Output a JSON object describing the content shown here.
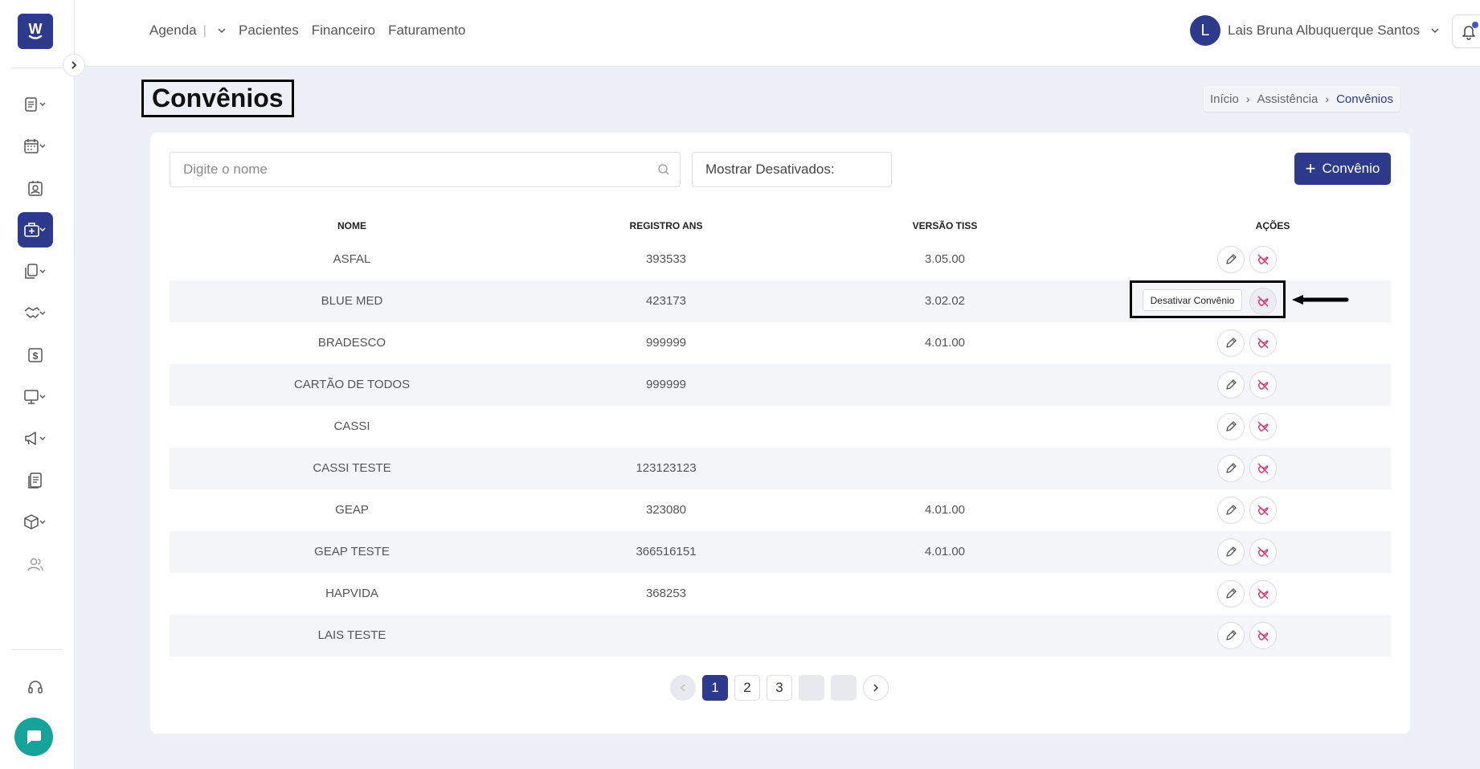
{
  "app": {
    "logo_letter": "W"
  },
  "topnav": {
    "items": [
      "Agenda",
      "Pacientes",
      "Financeiro",
      "Faturamento"
    ],
    "agenda_separator": "|"
  },
  "user": {
    "initial": "L",
    "name": "Lais Bruna Albuquerque Santos"
  },
  "page": {
    "title": "Convênios"
  },
  "breadcrumb": {
    "items": [
      "Início",
      "Assistência",
      "Convênios"
    ]
  },
  "search": {
    "placeholder": "Digite o nome",
    "value": ""
  },
  "filter": {
    "show_disabled_label": "Mostrar Desativados:",
    "show_disabled_on": false
  },
  "add_button": {
    "label": "Convênio"
  },
  "table": {
    "headers": [
      "NOME",
      "REGISTRO ANS",
      "VERSÃO TISS",
      "AÇÕES"
    ],
    "rows": [
      {
        "name": "ASFAL",
        "ans": "393533",
        "tiss": "3.05.00"
      },
      {
        "name": "BLUE MED",
        "ans": "423173",
        "tiss": "3.02.02"
      },
      {
        "name": "BRADESCO",
        "ans": "999999",
        "tiss": "4.01.00"
      },
      {
        "name": "CARTÃO DE TODOS",
        "ans": "999999",
        "tiss": ""
      },
      {
        "name": "CASSI",
        "ans": "",
        "tiss": ""
      },
      {
        "name": "CASSI TESTE",
        "ans": "123123123",
        "tiss": ""
      },
      {
        "name": "GEAP",
        "ans": "323080",
        "tiss": "4.01.00"
      },
      {
        "name": "GEAP TESTE",
        "ans": "366516151",
        "tiss": "4.01.00"
      },
      {
        "name": "HAPVIDA",
        "ans": "368253",
        "tiss": ""
      },
      {
        "name": "LAIS TESTE",
        "ans": "",
        "tiss": ""
      }
    ]
  },
  "tooltip": {
    "text": "Desativar Convênio"
  },
  "pagination": {
    "pages": [
      "1",
      "2",
      "3"
    ],
    "current": "1"
  },
  "colors": {
    "primary": "#2e3a8c",
    "danger_icon": "#d6336c",
    "chat": "#15a39a"
  }
}
